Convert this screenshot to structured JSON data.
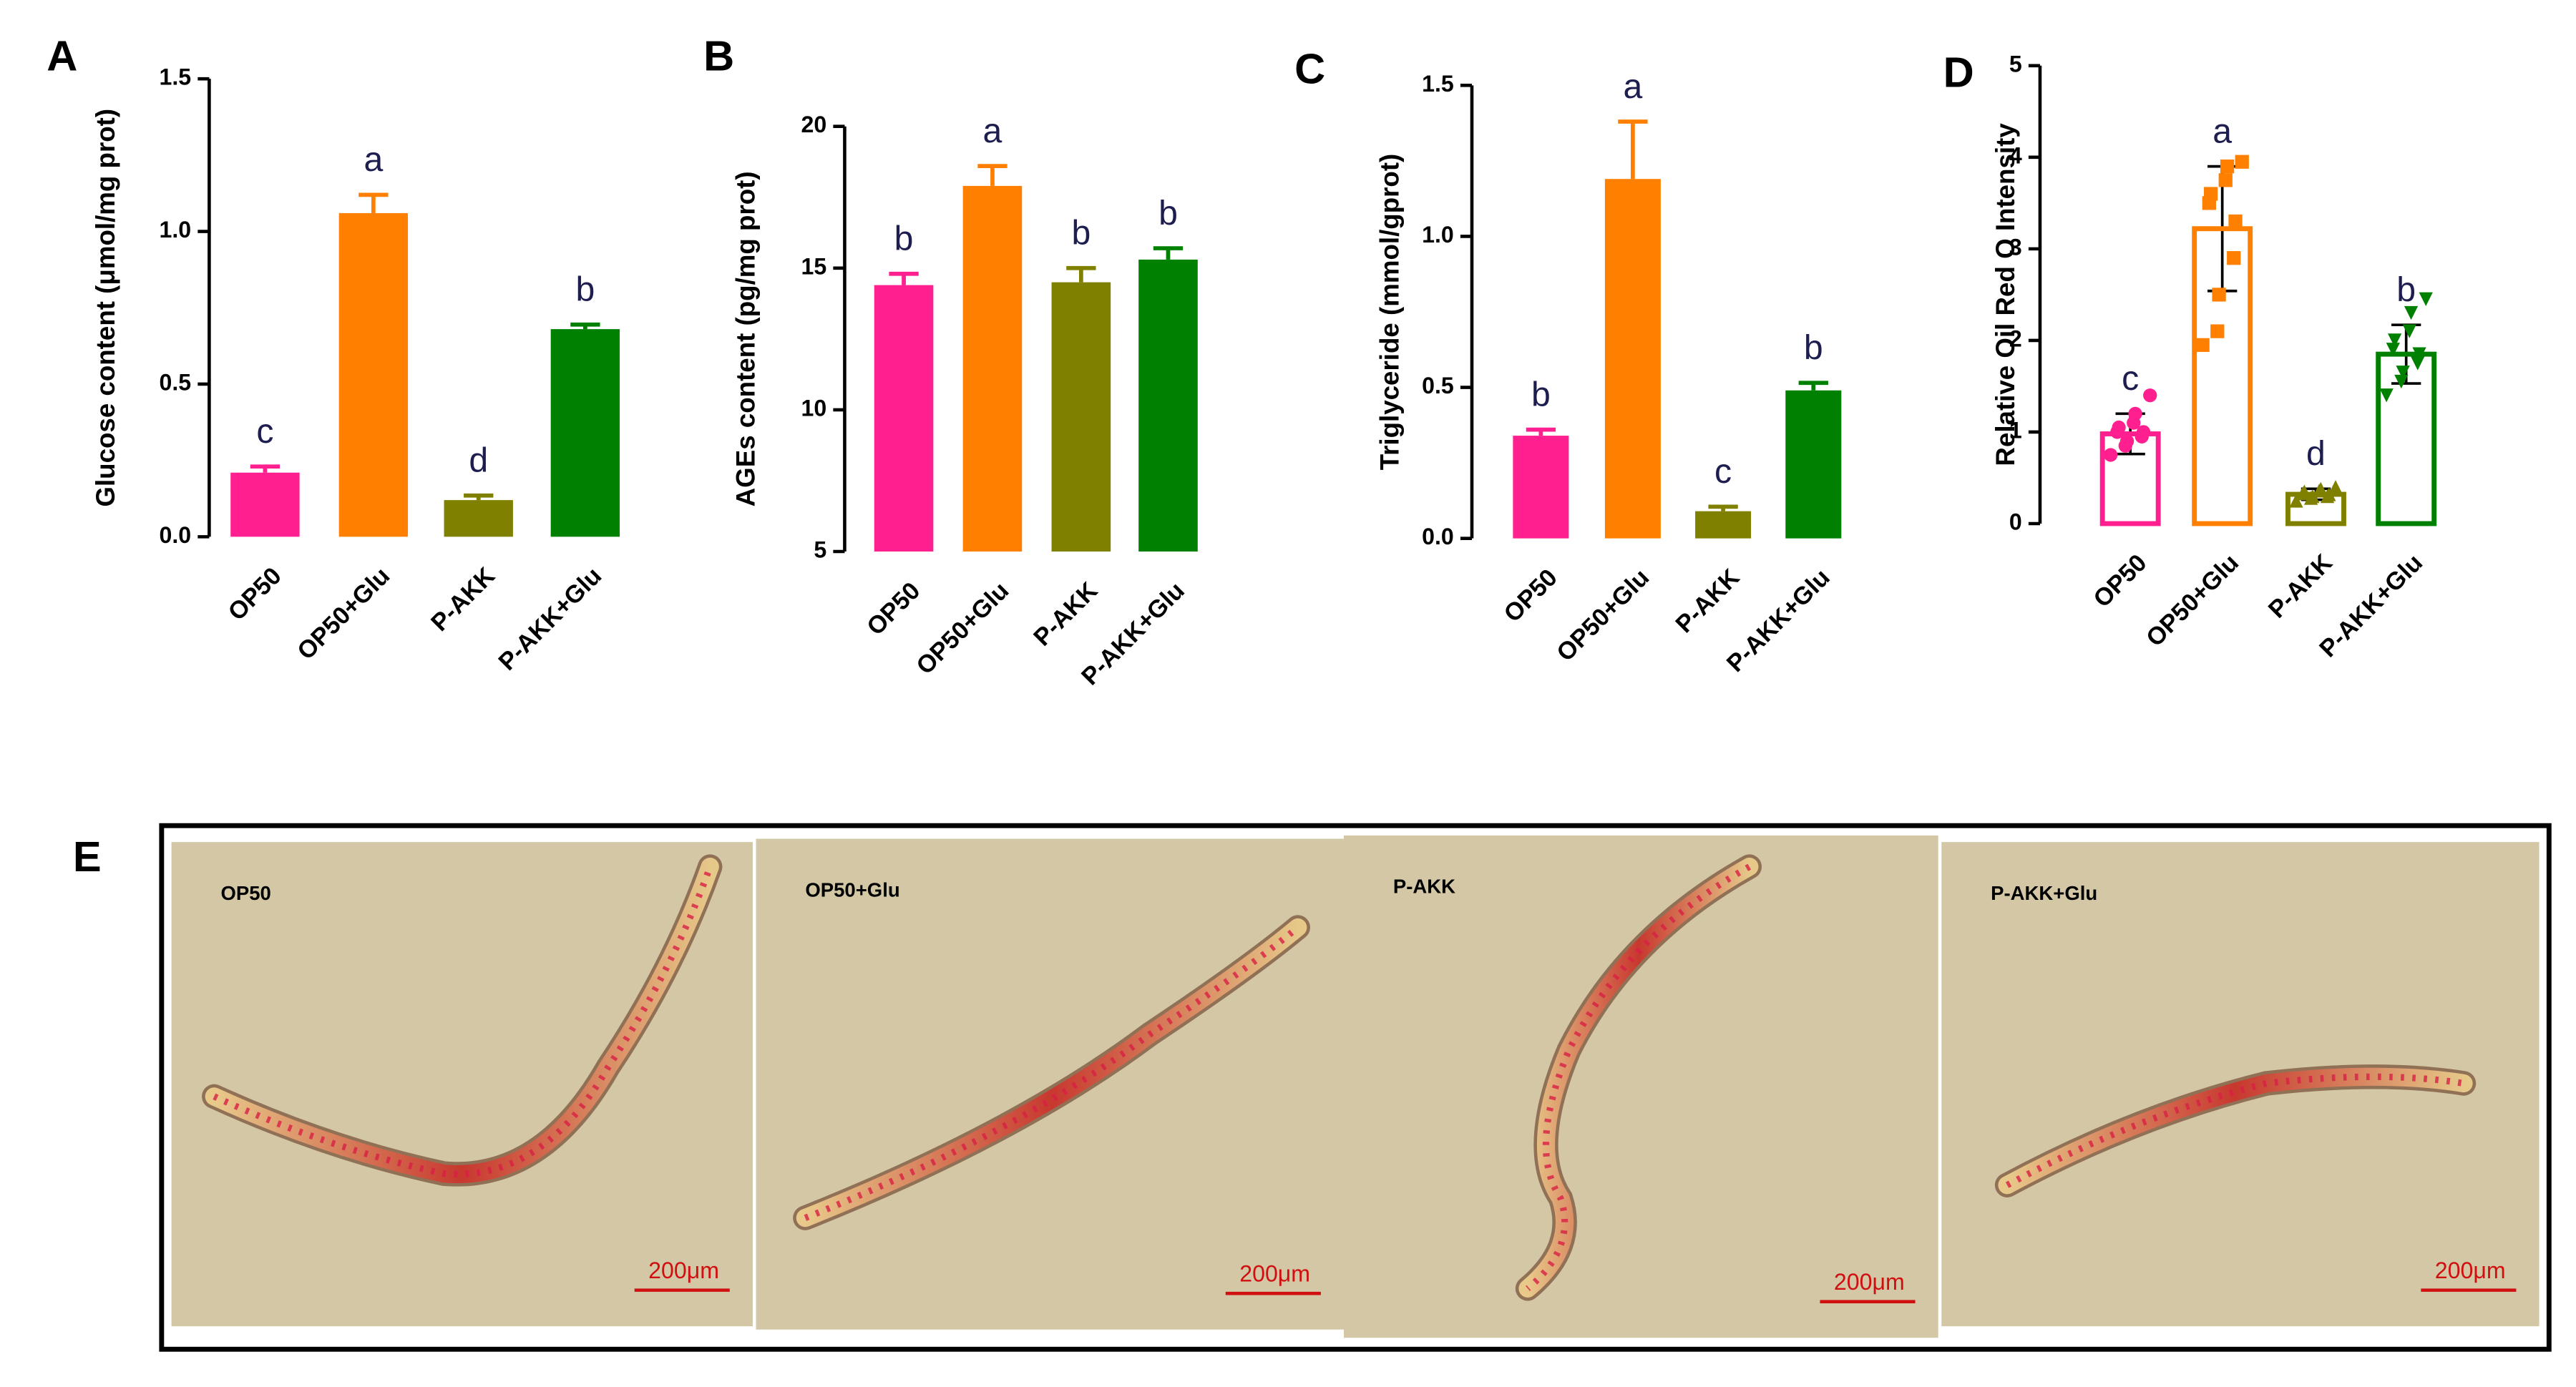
{
  "chart_data": [
    {
      "type": "bar",
      "panel": "A",
      "ylabel": "Glucose content (μmol/mg prot)",
      "categories": [
        "OP50",
        "OP50+Glu",
        "P-AKK",
        "P-AKK+Glu"
      ],
      "values": [
        0.21,
        1.06,
        0.12,
        0.68
      ],
      "errors": [
        0.02,
        0.06,
        0.015,
        0.015
      ],
      "annotations": [
        "c",
        "a",
        "d",
        "b"
      ],
      "colors": [
        "#ff1f8f",
        "#ff8000",
        "#808000",
        "#008000"
      ],
      "ylim": [
        0,
        1.5
      ],
      "yticks": [
        {
          "value": 0,
          "label": "0.0"
        },
        0.5,
        {
          "value": 1,
          "label": "1.0"
        },
        1.5
      ]
    },
    {
      "type": "bar",
      "panel": "B",
      "ylabel": "AGEs  content (pg/mg prot)",
      "categories": [
        "OP50",
        "OP50+Glu",
        "P-AKK",
        "P-AKK+Glu"
      ],
      "values": [
        14.4,
        17.9,
        14.5,
        15.3
      ],
      "errors": [
        0.4,
        0.7,
        0.5,
        0.4
      ],
      "annotations": [
        "b",
        "a",
        "b",
        "b"
      ],
      "colors": [
        "#ff1f8f",
        "#ff8000",
        "#808000",
        "#008000"
      ],
      "ylim": [
        5,
        20
      ],
      "yticks": [
        5,
        10,
        15,
        20
      ]
    },
    {
      "type": "bar",
      "panel": "C",
      "ylabel": "Triglyceride (mmol/gprot)",
      "categories": [
        "OP50",
        "OP50+Glu",
        "P-AKK",
        "P-AKK+Glu"
      ],
      "values": [
        0.34,
        1.19,
        0.09,
        0.49
      ],
      "errors": [
        0.02,
        0.19,
        0.015,
        0.025
      ],
      "annotations": [
        "b",
        "a",
        "c",
        "b"
      ],
      "colors": [
        "#ff1f8f",
        "#ff8000",
        "#808000",
        "#008000"
      ],
      "ylim": [
        0,
        1.5
      ],
      "yticks": [
        {
          "value": 0,
          "label": "0.0"
        },
        0.5,
        {
          "value": 1,
          "label": "1.0"
        },
        1.5
      ]
    },
    {
      "type": "dotbar",
      "panel": "D",
      "ylabel": "Relative Oil Red O Intensity",
      "categories": [
        "OP50",
        "OP50+Glu",
        "P-AKK",
        "P-AKK+Glu"
      ],
      "values": [
        0.98,
        3.22,
        0.32,
        1.85
      ],
      "errors": [
        0.22,
        0.68,
        0.06,
        0.32
      ],
      "points": [
        [
          0.75,
          0.85,
          0.9,
          0.95,
          1.0,
          1.0,
          1.05,
          1.1,
          1.2,
          1.4
        ],
        [
          1.95,
          2.1,
          2.5,
          2.9,
          3.3,
          3.5,
          3.6,
          3.75,
          3.9,
          3.95
        ],
        [
          0.25,
          0.28,
          0.3,
          0.3,
          0.32,
          0.33,
          0.35,
          0.36,
          0.38,
          0.4
        ],
        [
          1.4,
          1.55,
          1.65,
          1.75,
          1.85,
          1.9,
          2.0,
          2.1,
          2.3,
          2.45
        ]
      ],
      "annotations": [
        "c",
        "a",
        "d",
        "b"
      ],
      "colors": [
        "#ff1f8f",
        "#ff8000",
        "#808000",
        "#008000"
      ],
      "ylim": [
        0,
        5
      ],
      "yticks": [
        0,
        1,
        2,
        3,
        4,
        5
      ]
    }
  ],
  "panel_e": {
    "letter": "E",
    "images": [
      {
        "label": "OP50",
        "scale_bar": "200μm"
      },
      {
        "label": "OP50+Glu",
        "scale_bar": "200μm"
      },
      {
        "label": "P-AKK",
        "scale_bar": "200μm"
      },
      {
        "label": "P-AKK+Glu",
        "scale_bar": "200μm"
      }
    ]
  }
}
